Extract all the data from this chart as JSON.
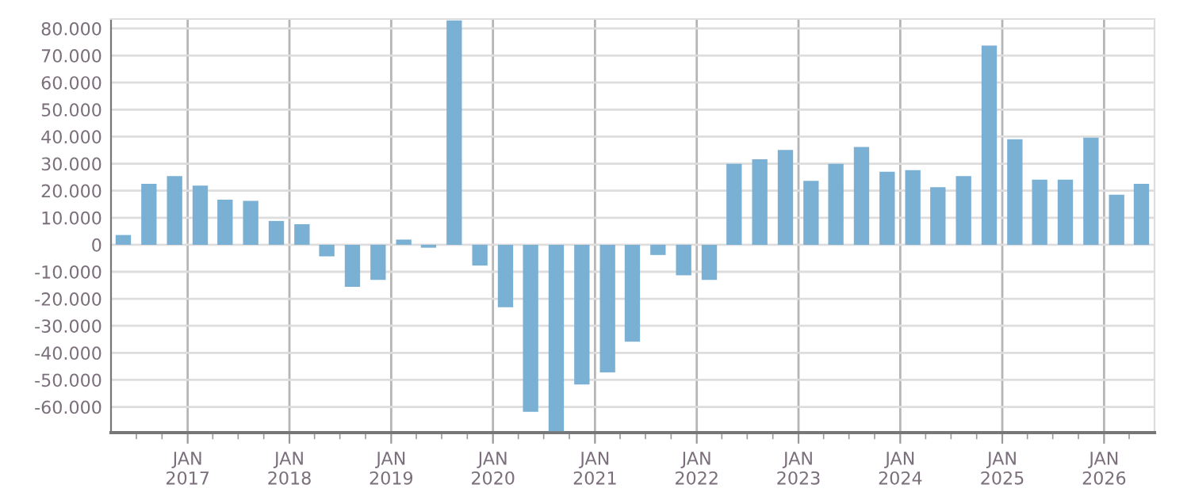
{
  "chart_data": {
    "type": "bar",
    "x": [
      "2016-05-15",
      "2016-08-15",
      "2016-11-15",
      "2017-02-15",
      "2017-05-15",
      "2017-08-15",
      "2017-11-15",
      "2018-02-15",
      "2018-05-15",
      "2018-08-15",
      "2018-11-15",
      "2019-02-15",
      "2019-05-15",
      "2019-08-15",
      "2019-11-15",
      "2020-02-15",
      "2020-05-15",
      "2020-08-15",
      "2020-11-15",
      "2021-02-15",
      "2021-05-15",
      "2021-08-15",
      "2021-11-15",
      "2022-02-15",
      "2022-05-15",
      "2022-08-15",
      "2022-11-15",
      "2023-02-15",
      "2023-05-15",
      "2023-08-15",
      "2023-11-15",
      "2024-02-15",
      "2024-05-15",
      "2024-08-15",
      "2024-11-15",
      "2025-02-15",
      "2025-05-15",
      "2025-08-15",
      "2025-11-15",
      "2026-02-15",
      "2026-05-15"
    ],
    "values": [
      3600,
      22500,
      25400,
      21900,
      16700,
      16200,
      8800,
      7600,
      -4300,
      -15600,
      -13000,
      1900,
      -1100,
      83000,
      -7700,
      -23100,
      -61800,
      -69000,
      -51700,
      -47200,
      -35900,
      -3800,
      -11300,
      -13000,
      29900,
      31600,
      35100,
      23600,
      29900,
      36200,
      27000,
      27600,
      21300,
      25400,
      73700,
      39000,
      24100,
      24100,
      39600,
      18500,
      22500
    ],
    "color": "#7ab0d3",
    "xlim": [
      "2016-04-01",
      "2026-07-01"
    ],
    "xticks": [
      {
        "value": "2016-07-01",
        "label": null
      },
      {
        "value": "2016-10-01",
        "label": null
      },
      {
        "value": "2017-01-01",
        "label": "JAN\n2017"
      },
      {
        "value": "2017-04-01",
        "label": null
      },
      {
        "value": "2017-07-01",
        "label": null
      },
      {
        "value": "2017-10-01",
        "label": null
      },
      {
        "value": "2018-01-01",
        "label": "JAN\n2018"
      },
      {
        "value": "2018-04-01",
        "label": null
      },
      {
        "value": "2018-07-01",
        "label": null
      },
      {
        "value": "2018-10-01",
        "label": null
      },
      {
        "value": "2019-01-01",
        "label": "JAN\n2019"
      },
      {
        "value": "2019-04-01",
        "label": null
      },
      {
        "value": "2019-07-01",
        "label": null
      },
      {
        "value": "2019-10-01",
        "label": null
      },
      {
        "value": "2020-01-01",
        "label": "JAN\n2020"
      },
      {
        "value": "2020-04-01",
        "label": null
      },
      {
        "value": "2020-07-01",
        "label": null
      },
      {
        "value": "2020-10-01",
        "label": null
      },
      {
        "value": "2021-01-01",
        "label": "JAN\n2021"
      },
      {
        "value": "2021-04-01",
        "label": null
      },
      {
        "value": "2021-07-01",
        "label": null
      },
      {
        "value": "2021-10-01",
        "label": null
      },
      {
        "value": "2022-01-01",
        "label": "JAN\n2022"
      },
      {
        "value": "2022-04-01",
        "label": null
      },
      {
        "value": "2022-07-01",
        "label": null
      },
      {
        "value": "2022-10-01",
        "label": null
      },
      {
        "value": "2023-01-01",
        "label": "JAN\n2023"
      },
      {
        "value": "2023-04-01",
        "label": null
      },
      {
        "value": "2023-07-01",
        "label": null
      },
      {
        "value": "2023-10-01",
        "label": null
      },
      {
        "value": "2024-01-01",
        "label": "JAN\n2024"
      },
      {
        "value": "2024-04-01",
        "label": null
      },
      {
        "value": "2024-07-01",
        "label": null
      },
      {
        "value": "2024-10-01",
        "label": null
      },
      {
        "value": "2025-01-01",
        "label": "JAN\n2025"
      },
      {
        "value": "2025-04-01",
        "label": null
      },
      {
        "value": "2025-07-01",
        "label": null
      },
      {
        "value": "2025-10-01",
        "label": null
      },
      {
        "value": "2026-01-01",
        "label": "JAN\n2026"
      },
      {
        "value": "2026-04-01",
        "label": null
      }
    ],
    "ylim": [
      -69500,
      83500
    ],
    "yticks": [
      {
        "value": -60000,
        "label": "-60.000"
      },
      {
        "value": -50000,
        "label": "-50.000"
      },
      {
        "value": -40000,
        "label": "-40.000"
      },
      {
        "value": -30000,
        "label": "-30.000"
      },
      {
        "value": -20000,
        "label": "-20.000"
      },
      {
        "value": -10000,
        "label": "-10.000"
      },
      0,
      {
        "value": 10000,
        "label": "10.000"
      },
      {
        "value": 20000,
        "label": "20.000"
      },
      {
        "value": 30000,
        "label": "30.000"
      },
      {
        "value": 40000,
        "label": "40.000"
      },
      {
        "value": 50000,
        "label": "50.000"
      },
      {
        "value": 60000,
        "label": "60.000"
      },
      {
        "value": 70000,
        "label": "70.000"
      },
      {
        "value": 80000,
        "label": "80.000"
      }
    ],
    "grid": true
  }
}
